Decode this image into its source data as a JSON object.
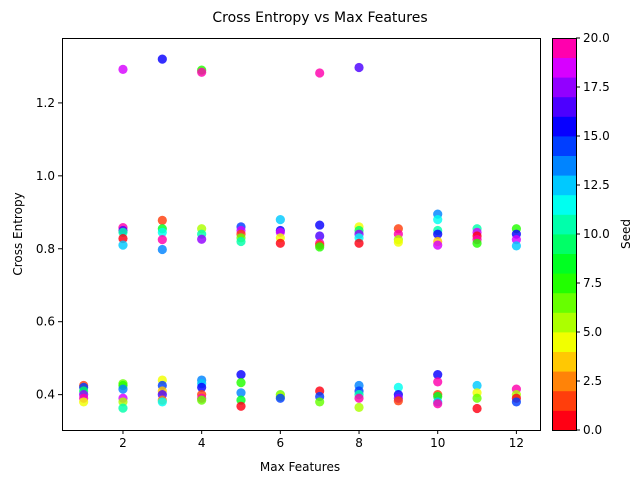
{
  "chart_data": {
    "type": "scatter",
    "title": "Cross Entropy vs Max Features",
    "xlabel": "Max Features",
    "ylabel": "Cross Entropy",
    "xlim": [
      0.45,
      12.6
    ],
    "ylim": [
      0.303,
      1.378
    ],
    "xticks": [
      2,
      4,
      6,
      8,
      10,
      12
    ],
    "yticks": [
      0.4,
      0.6,
      0.8,
      1.0,
      1.2
    ],
    "grid": false,
    "colorbar": {
      "label": "Seed",
      "colormap": "gist_rainbow",
      "range": [
        0.0,
        20.0
      ],
      "levels": 20,
      "ticks": [
        "0.0",
        "2.5",
        "5.0",
        "7.5",
        "10.0",
        "12.5",
        "15.0",
        "17.5",
        "20.0"
      ]
    },
    "points": [
      [
        2,
        1.292,
        18
      ],
      [
        3,
        1.32,
        15
      ],
      [
        4,
        1.29,
        7
      ],
      [
        4,
        1.284,
        19
      ],
      [
        7,
        1.282,
        20
      ],
      [
        8,
        1.297,
        16
      ],
      [
        1,
        0.425,
        1
      ],
      [
        1,
        0.42,
        14
      ],
      [
        1,
        0.41,
        9
      ],
      [
        1,
        0.4,
        17
      ],
      [
        1,
        0.39,
        19
      ],
      [
        1,
        0.38,
        4
      ],
      [
        2,
        0.858,
        19
      ],
      [
        2,
        0.85,
        16
      ],
      [
        2,
        0.845,
        10
      ],
      [
        2,
        0.828,
        0
      ],
      [
        2,
        0.81,
        12
      ],
      [
        2,
        0.43,
        6
      ],
      [
        2,
        0.425,
        7
      ],
      [
        2,
        0.415,
        13
      ],
      [
        2,
        0.39,
        18
      ],
      [
        2,
        0.38,
        5
      ],
      [
        2,
        0.363,
        10
      ],
      [
        3,
        0.878,
        1
      ],
      [
        3,
        0.855,
        8
      ],
      [
        3,
        0.845,
        11
      ],
      [
        3,
        0.825,
        19
      ],
      [
        3,
        0.798,
        13
      ],
      [
        3,
        0.44,
        4
      ],
      [
        3,
        0.425,
        14
      ],
      [
        3,
        0.41,
        3
      ],
      [
        3,
        0.4,
        16
      ],
      [
        3,
        0.385,
        2
      ],
      [
        3,
        0.38,
        11
      ],
      [
        4,
        0.855,
        5
      ],
      [
        4,
        0.84,
        10
      ],
      [
        4,
        0.826,
        17
      ],
      [
        4,
        0.44,
        13
      ],
      [
        4,
        0.43,
        12
      ],
      [
        4,
        0.42,
        15
      ],
      [
        4,
        0.4,
        1
      ],
      [
        4,
        0.39,
        19
      ],
      [
        4,
        0.385,
        6
      ],
      [
        5,
        0.86,
        14
      ],
      [
        5,
        0.85,
        18
      ],
      [
        5,
        0.84,
        1
      ],
      [
        5,
        0.83,
        6
      ],
      [
        5,
        0.82,
        10
      ],
      [
        5,
        0.455,
        15
      ],
      [
        5,
        0.433,
        7
      ],
      [
        5,
        0.405,
        13
      ],
      [
        5,
        0.385,
        8
      ],
      [
        5,
        0.368,
        0
      ],
      [
        6,
        0.88,
        12
      ],
      [
        6,
        0.85,
        15
      ],
      [
        6,
        0.845,
        18
      ],
      [
        6,
        0.83,
        4
      ],
      [
        6,
        0.815,
        0
      ],
      [
        6,
        0.4,
        6
      ],
      [
        6,
        0.395,
        5
      ],
      [
        6,
        0.39,
        14
      ],
      [
        7,
        0.865,
        15
      ],
      [
        7,
        0.835,
        16
      ],
      [
        7,
        0.815,
        20
      ],
      [
        7,
        0.81,
        1
      ],
      [
        7,
        0.805,
        7
      ],
      [
        7,
        0.41,
        0
      ],
      [
        7,
        0.395,
        14
      ],
      [
        7,
        0.38,
        6
      ],
      [
        8,
        0.86,
        4
      ],
      [
        8,
        0.85,
        9
      ],
      [
        8,
        0.84,
        17
      ],
      [
        8,
        0.83,
        11
      ],
      [
        8,
        0.815,
        0
      ],
      [
        8,
        0.425,
        13
      ],
      [
        8,
        0.41,
        14
      ],
      [
        8,
        0.4,
        10
      ],
      [
        8,
        0.39,
        19
      ],
      [
        8,
        0.365,
        5
      ],
      [
        9,
        0.855,
        1
      ],
      [
        9,
        0.84,
        19
      ],
      [
        9,
        0.825,
        5
      ],
      [
        9,
        0.818,
        4
      ],
      [
        9,
        0.42,
        11
      ],
      [
        9,
        0.4,
        15
      ],
      [
        9,
        0.39,
        17
      ],
      [
        9,
        0.383,
        1
      ],
      [
        10,
        0.895,
        13
      ],
      [
        10,
        0.88,
        11
      ],
      [
        10,
        0.85,
        10
      ],
      [
        10,
        0.84,
        15
      ],
      [
        10,
        0.82,
        3
      ],
      [
        10,
        0.81,
        18
      ],
      [
        10,
        0.455,
        15
      ],
      [
        10,
        0.435,
        19
      ],
      [
        10,
        0.4,
        1
      ],
      [
        10,
        0.395,
        8
      ],
      [
        10,
        0.38,
        12
      ],
      [
        10,
        0.375,
        20
      ],
      [
        11,
        0.855,
        10
      ],
      [
        11,
        0.845,
        18
      ],
      [
        11,
        0.835,
        0
      ],
      [
        11,
        0.825,
        19
      ],
      [
        11,
        0.815,
        7
      ],
      [
        11,
        0.425,
        12
      ],
      [
        11,
        0.405,
        4
      ],
      [
        11,
        0.39,
        6
      ],
      [
        11,
        0.362,
        0
      ],
      [
        12,
        0.855,
        7
      ],
      [
        12,
        0.84,
        15
      ],
      [
        12,
        0.825,
        18
      ],
      [
        12,
        0.808,
        12
      ],
      [
        12,
        0.415,
        19
      ],
      [
        12,
        0.4,
        5
      ],
      [
        12,
        0.39,
        0
      ],
      [
        12,
        0.38,
        14
      ]
    ]
  }
}
